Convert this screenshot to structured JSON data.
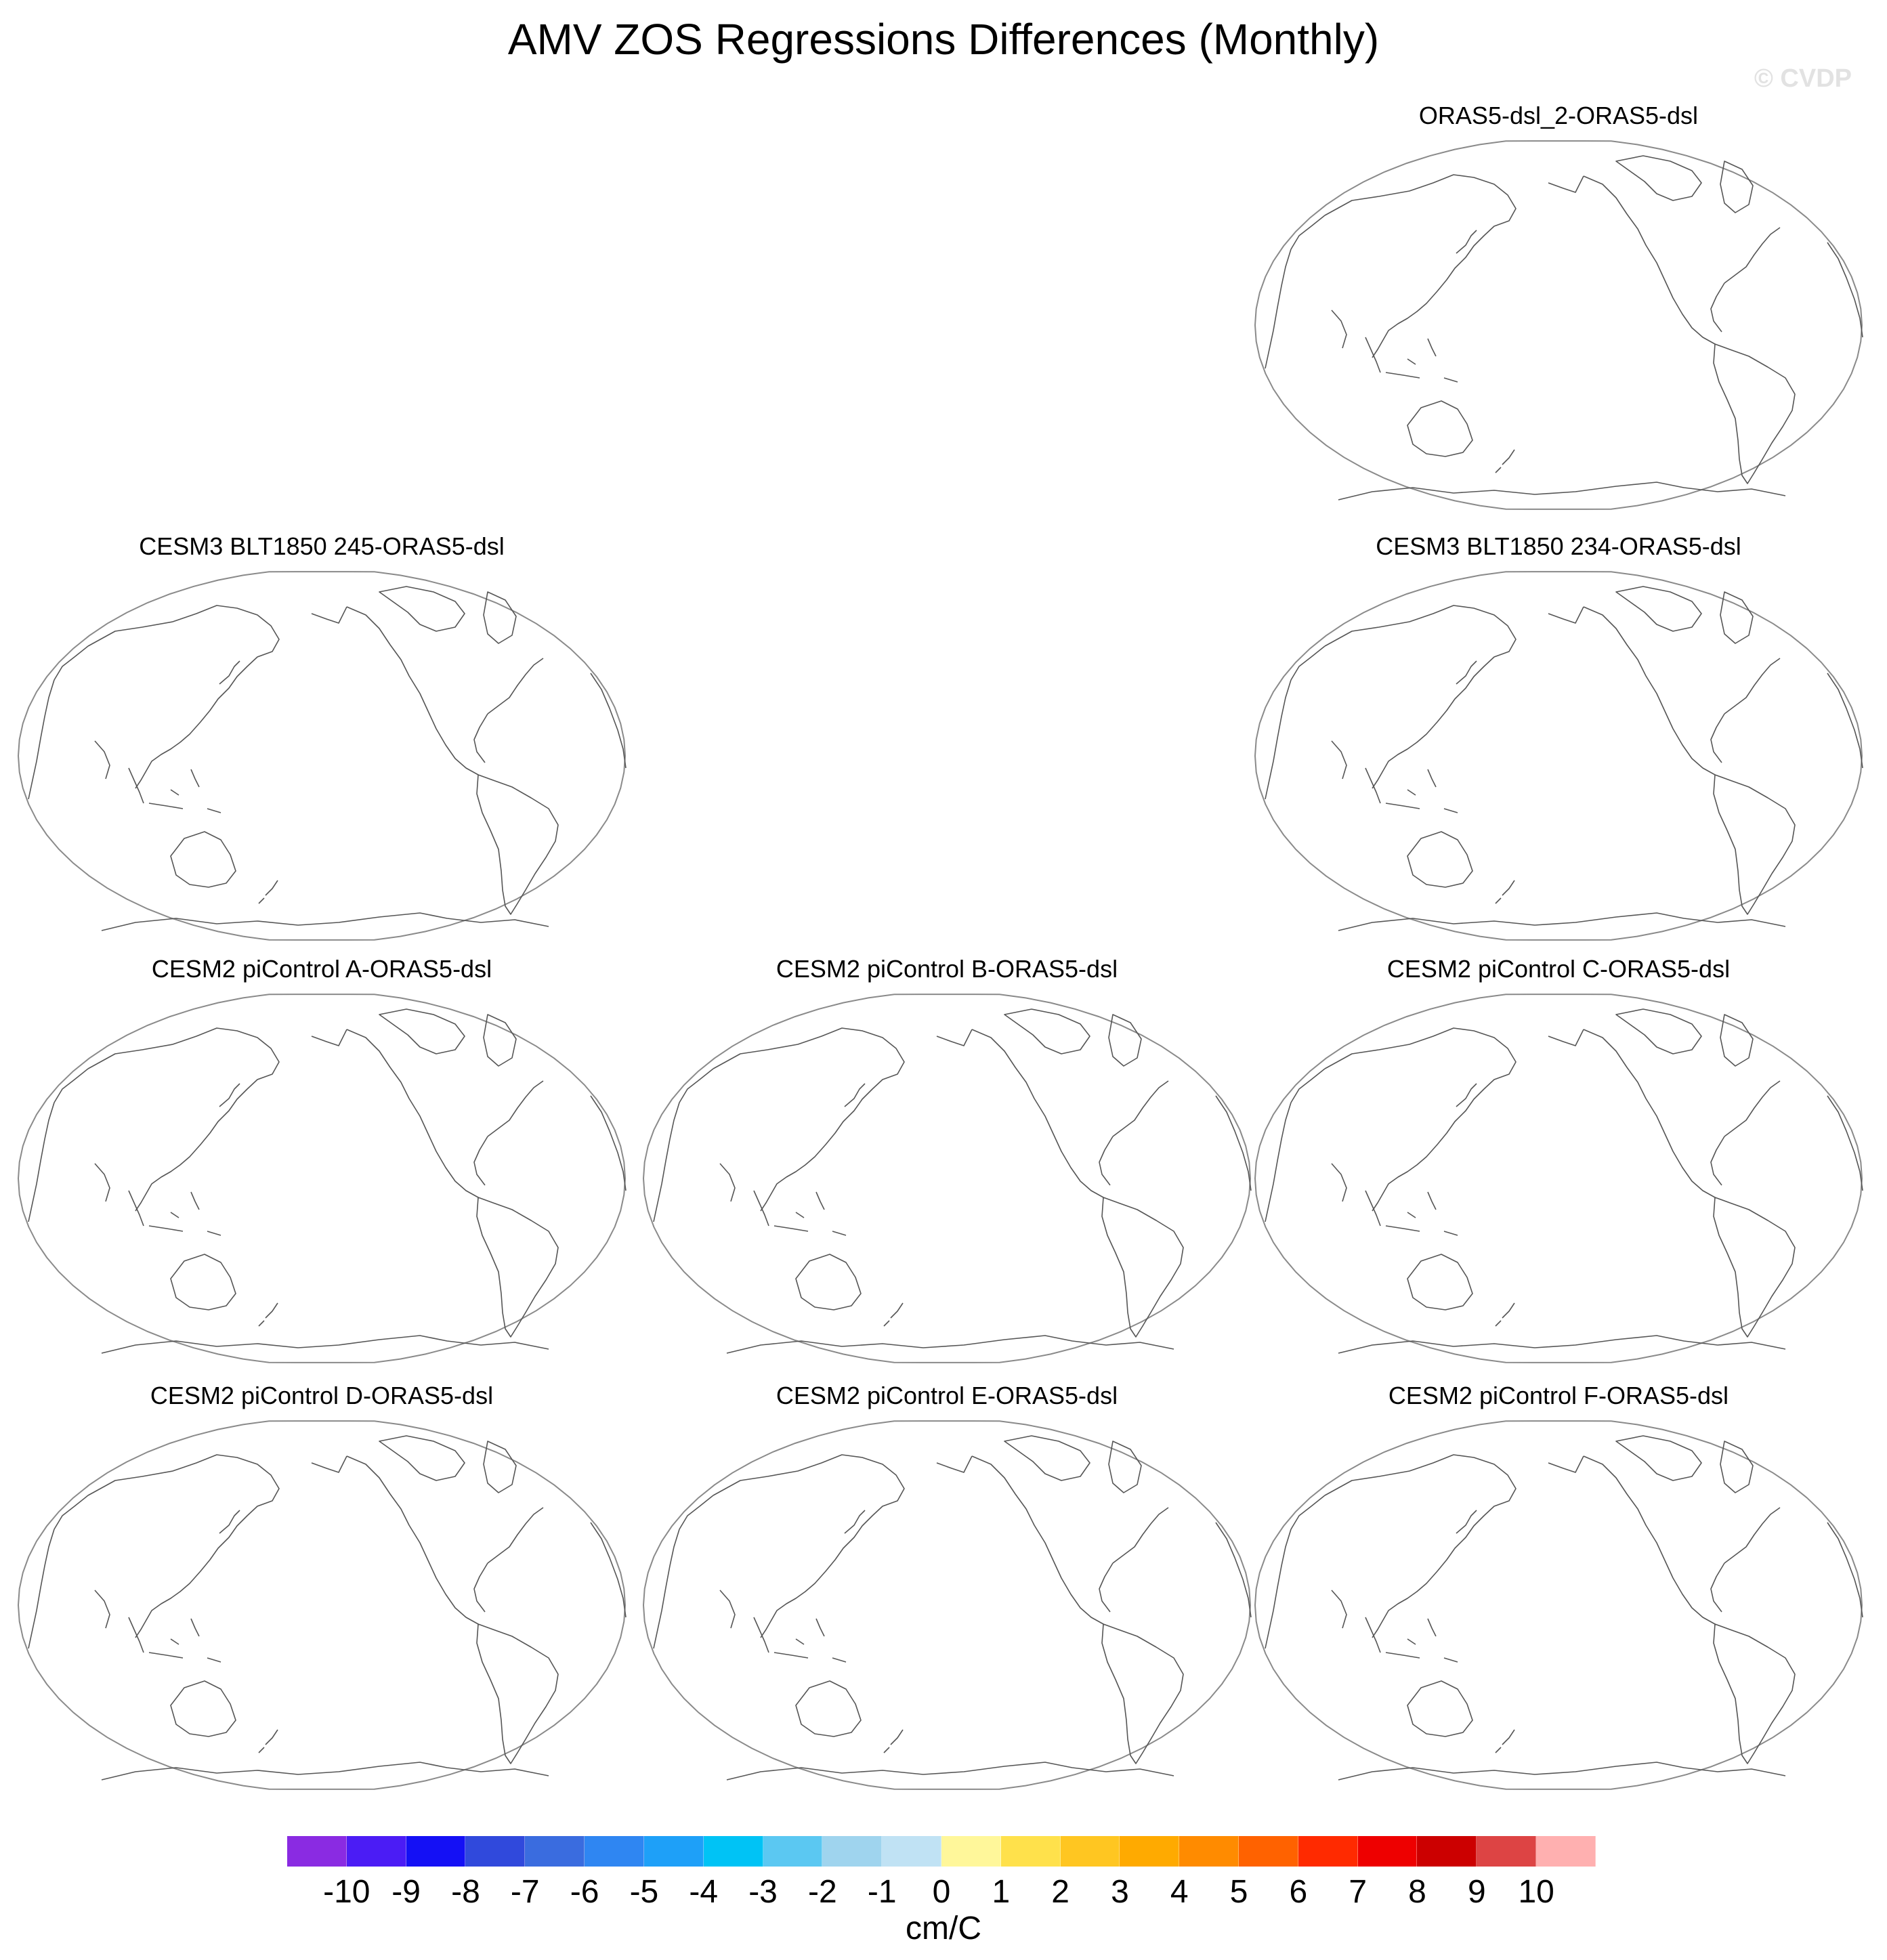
{
  "figure": {
    "title": "AMV ZOS Regressions Differences (Monthly)",
    "watermark": "© CVDP"
  },
  "panels": [
    {
      "id": "orasdsl2",
      "title": "ORAS5-dsl_2-ORAS5-dsl"
    },
    {
      "id": "blt245",
      "title": "CESM3 BLT1850 245-ORAS5-dsl"
    },
    {
      "id": "blt234",
      "title": "CESM3 BLT1850 234-ORAS5-dsl"
    },
    {
      "id": "pica",
      "title": "CESM2 piControl A-ORAS5-dsl"
    },
    {
      "id": "picb",
      "title": "CESM2 piControl B-ORAS5-dsl"
    },
    {
      "id": "picc",
      "title": "CESM2 piControl C-ORAS5-dsl"
    },
    {
      "id": "picd",
      "title": "CESM2 piControl D-ORAS5-dsl"
    },
    {
      "id": "pice",
      "title": "CESM2 piControl E-ORAS5-dsl"
    },
    {
      "id": "picf",
      "title": "CESM2 piControl F-ORAS5-dsl"
    }
  ],
  "colorbar": {
    "units": "cm/C",
    "tick_labels": [
      "-10",
      "-9",
      "-8",
      "-7",
      "-6",
      "-5",
      "-4",
      "-3",
      "-2",
      "-1",
      "0",
      "1",
      "2",
      "3",
      "4",
      "5",
      "6",
      "7",
      "8",
      "9",
      "10"
    ],
    "colors": [
      "#8a2be2",
      "#4b1cf5",
      "#1410f5",
      "#3049dc",
      "#3a6cdf",
      "#2f86f2",
      "#1ea0f8",
      "#00c3f5",
      "#5bc8f2",
      "#9fd4ee",
      "#c0e2f4",
      "#fff79a",
      "#ffe14b",
      "#ffc621",
      "#ffaa00",
      "#ff8b00",
      "#ff6200",
      "#ff2a00",
      "#ee0000",
      "#cc0000",
      "#dd4444",
      "#ffb0b0"
    ]
  }
}
